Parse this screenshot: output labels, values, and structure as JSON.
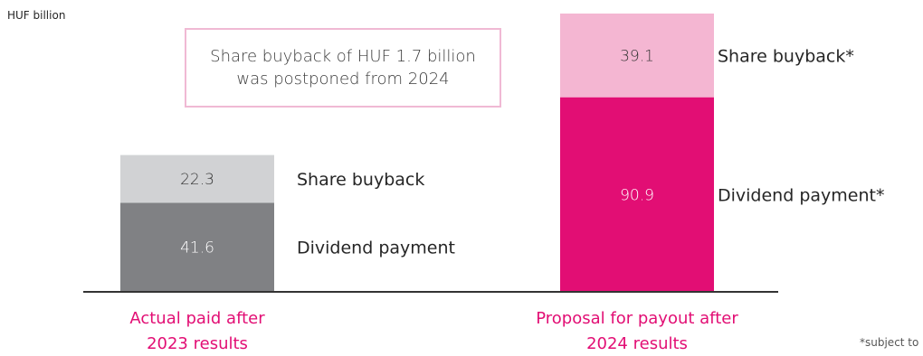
{
  "unit_label": "HUF billion",
  "callout": "Share buyback of HUF 1.7 billion was postponed from 2024",
  "footnote": "*subject to",
  "colors": {
    "dividend_2023": "#808184",
    "buyback_2023": "#d1d2d4",
    "dividend_2024": "#e20e74",
    "buyback_2024": "#f4b6d2",
    "category_text": "#e20e74",
    "callout_border": "#f0b9d4"
  },
  "chart_data": {
    "type": "bar",
    "stacked": true,
    "title": "",
    "ylabel": "HUF billion",
    "categories": [
      [
        "Actual paid after",
        "2023 results"
      ],
      [
        "Proposal for payout after",
        "2024 results"
      ]
    ],
    "series": [
      {
        "name": [
          "Dividend payment",
          "Dividend payment*"
        ],
        "values": [
          41.6,
          90.9
        ]
      },
      {
        "name": [
          "Share buyback",
          "Share buyback*"
        ],
        "values": [
          22.3,
          39.1
        ]
      }
    ],
    "ylim": [
      0,
      130
    ],
    "grid": false,
    "legend": "inline-right"
  }
}
